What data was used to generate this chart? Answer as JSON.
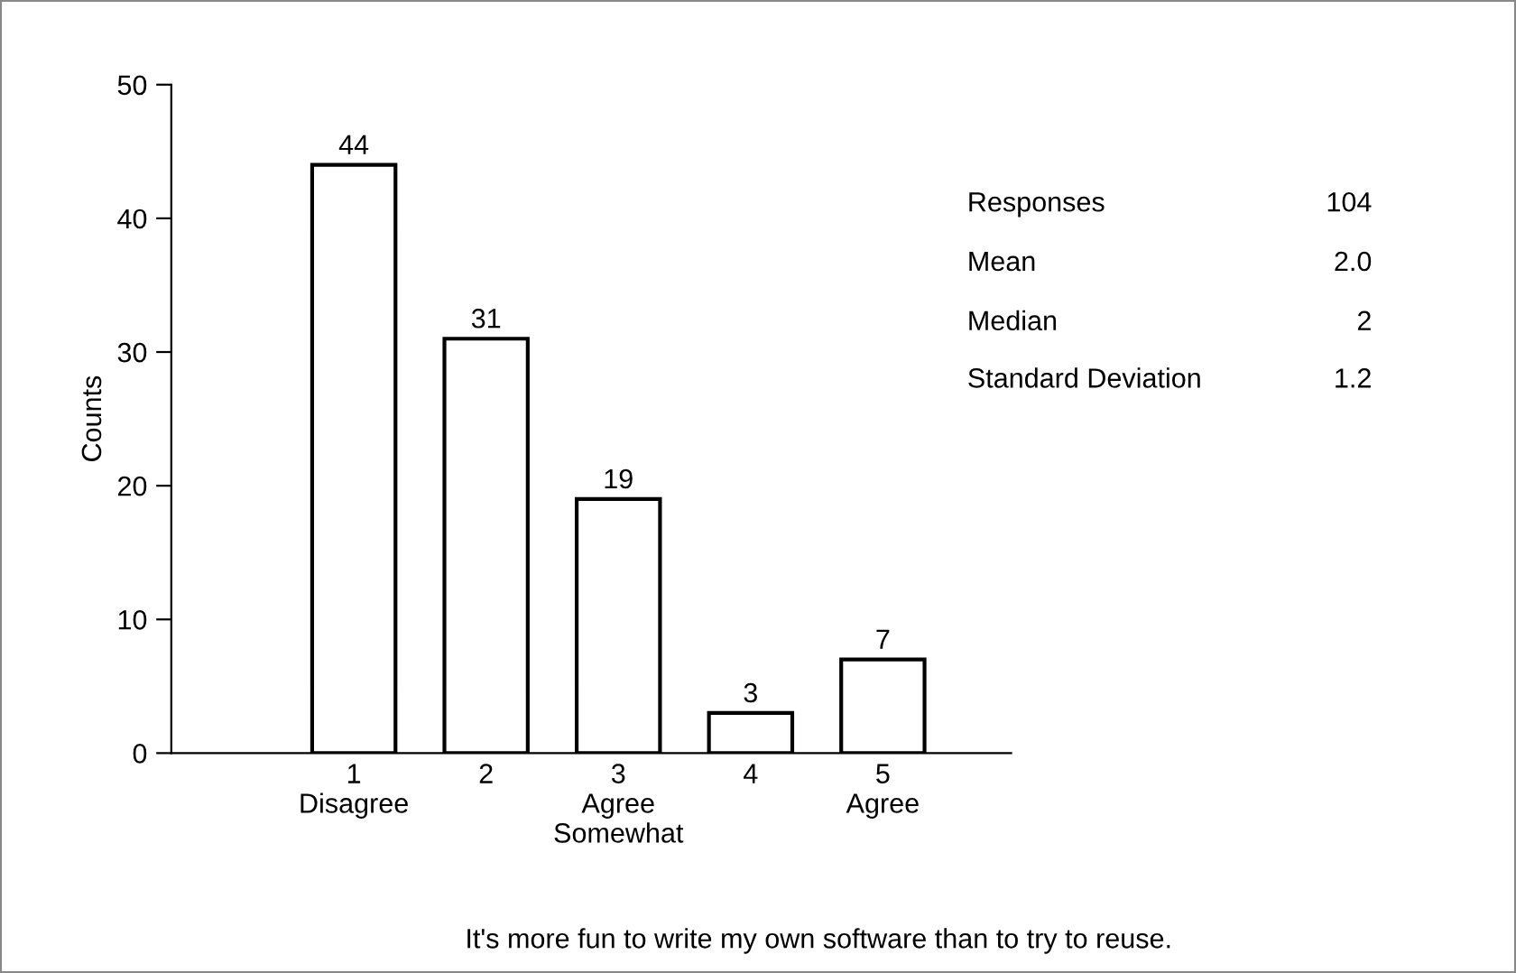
{
  "chart_data": {
    "type": "bar",
    "ylabel": "Counts",
    "categories": [
      "1\nDisagree",
      "2",
      "3\nAgree\nSomewhat",
      "4",
      "5\nAgree"
    ],
    "values": [
      44,
      31,
      19,
      3,
      7
    ],
    "color": "#ffffff",
    "data_labels": true,
    "ylim": [
      0,
      50
    ],
    "yticks": [
      0,
      10,
      20,
      30,
      40,
      50
    ],
    "grid": false,
    "legend": false,
    "annotations": [
      "Responses",
      "104",
      "Mean",
      "2.0",
      "Median",
      "2",
      "Standard Deviation",
      "1.2",
      "It's more fun to write my own software than to try to reuse."
    ]
  }
}
